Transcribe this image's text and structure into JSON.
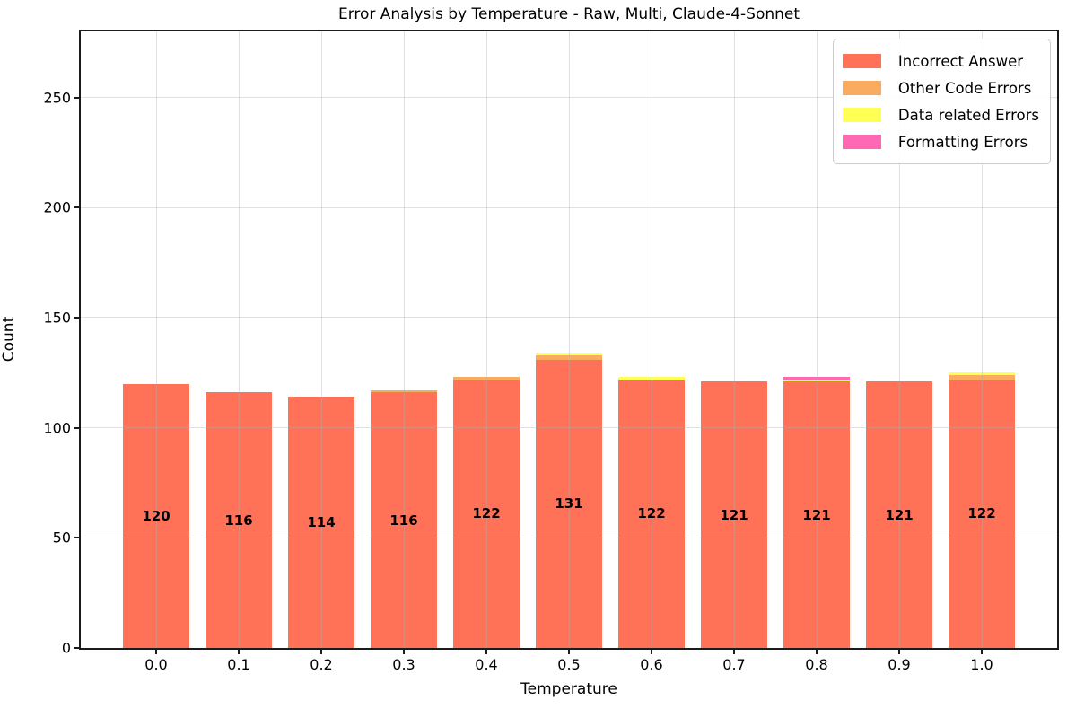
{
  "chart_data": {
    "type": "bar",
    "stacked": true,
    "title": "Error Analysis by Temperature - Raw, Multi, Claude-4-Sonnet",
    "xlabel": "Temperature",
    "ylabel": "Count",
    "categories": [
      "0.0",
      "0.1",
      "0.2",
      "0.3",
      "0.4",
      "0.5",
      "0.6",
      "0.7",
      "0.8",
      "0.9",
      "1.0"
    ],
    "series": [
      {
        "name": "Incorrect Answer",
        "color": "#ff7257",
        "values": [
          120,
          116,
          114,
          116,
          122,
          131,
          122,
          121,
          121,
          121,
          122
        ]
      },
      {
        "name": "Other Code Errors",
        "color": "#f9ab60",
        "values": [
          0,
          0,
          0,
          1,
          1,
          2,
          0,
          0,
          0,
          0,
          2
        ]
      },
      {
        "name": "Data related Errors",
        "color": "#ffff55",
        "values": [
          0,
          0,
          0,
          0,
          0,
          1,
          1,
          0,
          1,
          0,
          1
        ]
      },
      {
        "name": "Formatting Errors",
        "color": "#ff69b4",
        "values": [
          0,
          0,
          0,
          0,
          0,
          0,
          0,
          0,
          1,
          0,
          0
        ]
      }
    ],
    "bar_labels": [
      "120",
      "116",
      "114",
      "116",
      "122",
      "131",
      "122",
      "121",
      "121",
      "121",
      "122"
    ],
    "ylim": [
      0,
      280
    ],
    "yticks": [
      0,
      50,
      100,
      150,
      200,
      250
    ],
    "grid": true,
    "legend_position": "upper right",
    "axis_color": "#1b1b1b",
    "grid_color": "#b0b0b0"
  }
}
